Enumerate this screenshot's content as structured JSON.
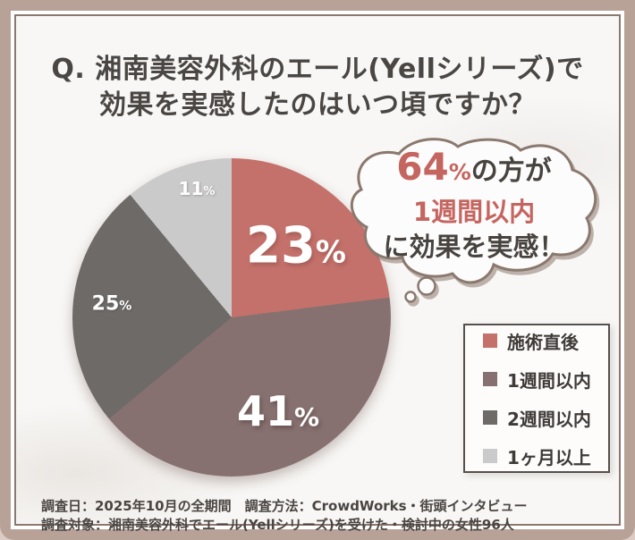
{
  "palette": {
    "accent_red": "#c5716b",
    "mauve": "#877170",
    "dark_gray": "#6e6a68",
    "light_gray": "#cbcaca",
    "frame_brown": "#b8a298",
    "line_brown": "#8b786e",
    "text_dark": "#4a4644"
  },
  "title": {
    "line1": "Q. 湘南美容外科のエール(Yellシリーズ)で",
    "line2": "効果を実感したのはいつ頃ですか？"
  },
  "bubble": {
    "value": "64",
    "unit": "%",
    "after_value": "の方が",
    "highlight": "1週間以内",
    "line3": "に効果を実感！"
  },
  "footer": {
    "line1": "調査日：2025年10月の全期間　調査方法：CrowdWorks・街頭インタビュー",
    "line2": "調査対象：湘南美容外科でエール(Yellシリーズ)を受けた・検討中の女性96人"
  },
  "chart_data": {
    "type": "pie",
    "title": "Q. 湘南美容外科のエール(Yellシリーズ)で効果を実感したのはいつ頃ですか？",
    "categories": [
      "施術直後",
      "1週間以内",
      "2週間以内",
      "1ヶ月以上"
    ],
    "values": [
      23,
      41,
      25,
      11
    ],
    "unit": "%",
    "colors": [
      "#c5716b",
      "#877170",
      "#6e6a68",
      "#cbcaca"
    ],
    "start_angle_deg": 0,
    "direction": "clockwise",
    "legend_position": "right",
    "annotation": "64%の方が1週間以内に効果を実感！"
  }
}
